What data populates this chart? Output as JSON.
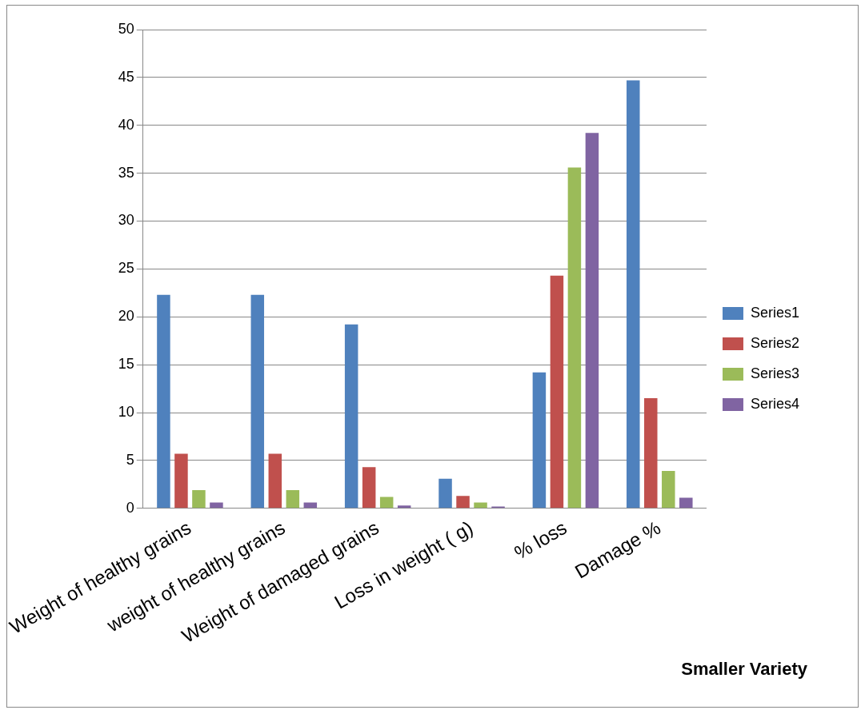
{
  "chart_data": {
    "type": "bar",
    "title": "Smaller Variety",
    "categories": [
      "Weight of healthy grains",
      "weight of healthy grains",
      "Weight of damaged grains",
      "Loss in weight ( g)",
      "% loss",
      "Damage %"
    ],
    "series": [
      {
        "name": "Series1",
        "color": "#4f81bd",
        "values": [
          22.3,
          22.3,
          19.2,
          3.1,
          14.2,
          44.7
        ]
      },
      {
        "name": "Series2",
        "color": "#c0504d",
        "values": [
          5.7,
          5.7,
          4.3,
          1.3,
          24.3,
          11.5
        ]
      },
      {
        "name": "Series3",
        "color": "#9bbb59",
        "values": [
          1.9,
          1.9,
          1.2,
          0.6,
          35.6,
          3.9
        ]
      },
      {
        "name": "Series4",
        "color": "#8064a2",
        "values": [
          0.6,
          0.6,
          0.3,
          0.2,
          39.2,
          1.1
        ]
      }
    ],
    "ylim": [
      0,
      50
    ],
    "yticks": [
      0,
      5,
      10,
      15,
      20,
      25,
      30,
      35,
      40,
      45,
      50
    ],
    "grid": "y",
    "legend": "right"
  }
}
